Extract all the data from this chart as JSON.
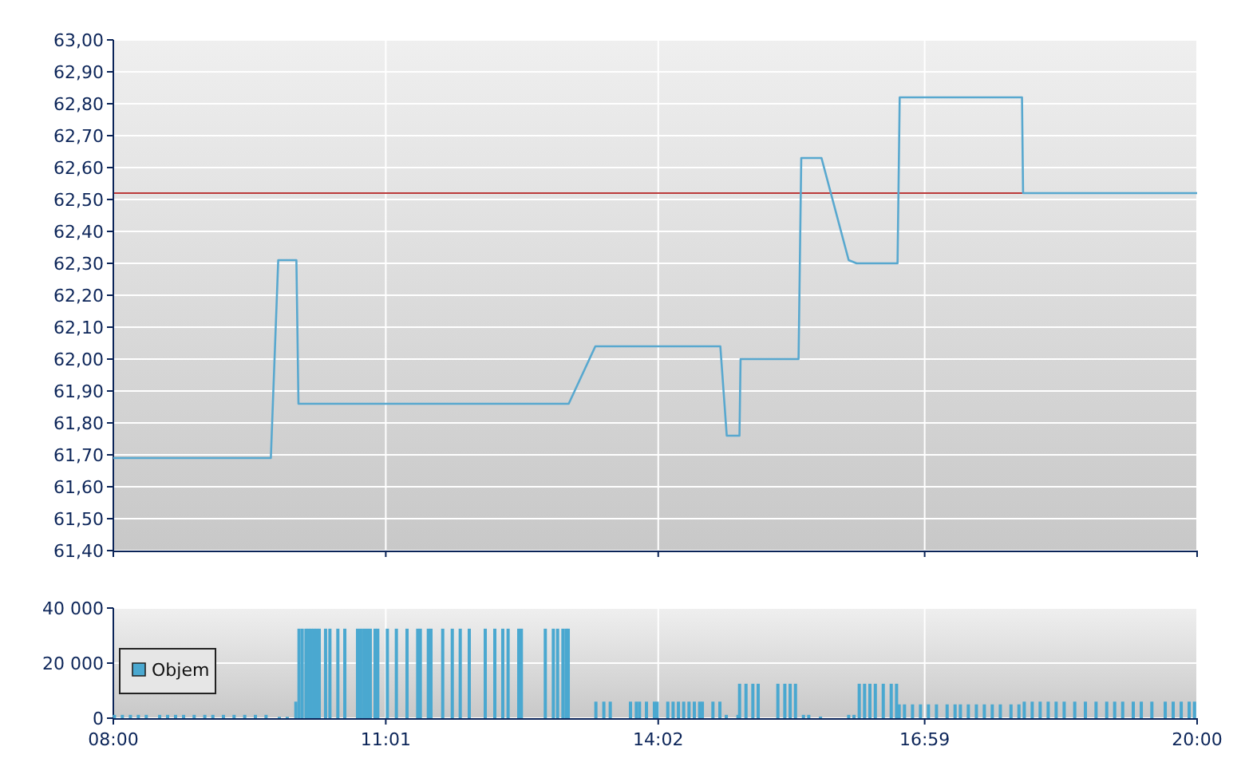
{
  "chart_data": [
    {
      "type": "line",
      "x": [
        8,
        9.744,
        9.826,
        10.027,
        10.05,
        13.042,
        13.337,
        14.721,
        14.792,
        14.933,
        14.945,
        15.587,
        15.617,
        15.841,
        16.142,
        16.23,
        16.683,
        16.707,
        18.061,
        18.073,
        20
      ],
      "series": [
        {
          "color": "#58a8cf",
          "values": [
            61.69,
            61.69,
            62.31,
            62.31,
            61.86,
            61.86,
            62.04,
            62.04,
            61.76,
            61.76,
            62.0,
            62.0,
            62.63,
            62.63,
            62.31,
            62.3,
            62.3,
            62.82,
            62.82,
            62.52,
            62.52
          ]
        }
      ],
      "xlim": [
        8,
        20
      ],
      "xticks": [
        {
          "value": 8,
          "label": null
        },
        {
          "value": 11.0167,
          "label": null
        },
        {
          "value": 14.0333,
          "label": null
        },
        {
          "value": 16.9833,
          "label": null
        },
        {
          "value": 20,
          "label": null
        }
      ],
      "ylim": [
        61.4,
        63
      ],
      "yticks": [
        {
          "value": 61.4,
          "label": "61,40"
        },
        {
          "value": 61.5,
          "label": "61,50"
        },
        {
          "value": 61.6,
          "label": "61,60"
        },
        {
          "value": 61.7,
          "label": "61,70"
        },
        {
          "value": 61.8,
          "label": "61,80"
        },
        {
          "value": 61.9,
          "label": "61,90"
        },
        {
          "value": 62.0,
          "label": "62,00"
        },
        {
          "value": 62.1,
          "label": "62,10"
        },
        {
          "value": 62.2,
          "label": "62,20"
        },
        {
          "value": 62.3,
          "label": "62,30"
        },
        {
          "value": 62.4,
          "label": "62,40"
        },
        {
          "value": 62.5,
          "label": "62,50"
        },
        {
          "value": 62.6,
          "label": "62,60"
        },
        {
          "value": 62.7,
          "label": "62,70"
        },
        {
          "value": 62.8,
          "label": "62,80"
        },
        {
          "value": 62.9,
          "label": "62,90"
        },
        {
          "value": 63.0,
          "label": "63,00"
        }
      ],
      "ref_lines": [
        {
          "axis": "y",
          "value": 62.52,
          "color": "#bb3a3a"
        }
      ],
      "grid": true,
      "tick_labels": "y"
    },
    {
      "type": "bar",
      "x": [
        8.012,
        8.1,
        8.189,
        8.277,
        8.365,
        8.513,
        8.601,
        8.689,
        8.778,
        8.895,
        9.013,
        9.102,
        9.219,
        9.337,
        9.455,
        9.573,
        9.691,
        9.838,
        9.926,
        10.021,
        10.056,
        10.091,
        10.133,
        10.162,
        10.191,
        10.221,
        10.25,
        10.28,
        10.35,
        10.398,
        10.486,
        10.563,
        10.704,
        10.739,
        10.775,
        10.81,
        10.845,
        10.898,
        10.928,
        11.034,
        11.134,
        11.252,
        11.37,
        11.399,
        11.488,
        11.517,
        11.647,
        11.753,
        11.841,
        11.941,
        12.118,
        12.224,
        12.312,
        12.371,
        12.489,
        12.518,
        12.783,
        12.872,
        12.919,
        12.978,
        13.013,
        13.037,
        13.343,
        13.431,
        13.502,
        13.726,
        13.791,
        13.826,
        13.903,
        13.991,
        14.021,
        14.139,
        14.198,
        14.257,
        14.315,
        14.374,
        14.433,
        14.492,
        14.522,
        14.639,
        14.716,
        14.787,
        14.916,
        14.934,
        15.005,
        15.081,
        15.14,
        15.358,
        15.435,
        15.494,
        15.553,
        15.641,
        15.7,
        15.83,
        16.142,
        16.201,
        16.259,
        16.318,
        16.377,
        16.437,
        16.525,
        16.613,
        16.672,
        16.701,
        16.76,
        16.849,
        16.937,
        17.025,
        17.114,
        17.232,
        17.32,
        17.379,
        17.467,
        17.556,
        17.644,
        17.732,
        17.821,
        17.939,
        18.027,
        18.086,
        18.174,
        18.262,
        18.351,
        18.439,
        18.528,
        18.645,
        18.763,
        18.881,
        18.999,
        19.087,
        19.176,
        19.293,
        19.382,
        19.499,
        19.647,
        19.735,
        19.824,
        19.912,
        19.971
      ],
      "series": [
        {
          "name": "Objem",
          "color": "#4aa8d0",
          "values": [
            1200,
            1200,
            1200,
            1200,
            1200,
            1200,
            1200,
            1200,
            1200,
            1200,
            1200,
            1200,
            1200,
            1200,
            1200,
            1200,
            1200,
            500,
            500,
            6000,
            32500,
            32500,
            32500,
            32500,
            32500,
            32500,
            32500,
            32500,
            32500,
            32500,
            32500,
            32500,
            32500,
            32500,
            32500,
            32500,
            32500,
            32500,
            32500,
            32500,
            32500,
            32500,
            32500,
            32500,
            32500,
            32500,
            32500,
            32500,
            32500,
            32500,
            32500,
            32500,
            32500,
            32500,
            32500,
            32500,
            32500,
            32500,
            32500,
            32500,
            32500,
            32500,
            6000,
            6000,
            6000,
            6000,
            6000,
            6000,
            6000,
            6000,
            6000,
            6000,
            6000,
            6000,
            6000,
            6000,
            6000,
            6000,
            6000,
            6000,
            6000,
            1200,
            1200,
            12500,
            12500,
            12500,
            12500,
            12500,
            12500,
            12500,
            12500,
            1200,
            1200,
            600,
            1200,
            1200,
            12500,
            12500,
            12500,
            12500,
            12500,
            12500,
            12500,
            5000,
            5000,
            5000,
            5000,
            5000,
            5000,
            5000,
            5000,
            5000,
            5000,
            5000,
            5000,
            5000,
            5000,
            5000,
            5000,
            6000,
            6000,
            6000,
            6000,
            6000,
            6000,
            6000,
            6000,
            6000,
            6000,
            6000,
            6000,
            6000,
            6000,
            6000,
            6000,
            6000,
            6000,
            6000,
            6000
          ]
        }
      ],
      "xlim": [
        8,
        20
      ],
      "xticks": [
        {
          "value": 8,
          "label": "08:00"
        },
        {
          "value": 11.0167,
          "label": "11:01"
        },
        {
          "value": 14.0333,
          "label": "14:02"
        },
        {
          "value": 16.9833,
          "label": "16:59"
        },
        {
          "value": 20,
          "label": "20:00"
        }
      ],
      "ylim": [
        0,
        40000
      ],
      "yticks": [
        {
          "value": 0,
          "label": "0"
        },
        {
          "value": 20000,
          "label": "20 000"
        },
        {
          "value": 40000,
          "label": "40 000"
        }
      ],
      "grid": true,
      "legend": "left"
    }
  ]
}
